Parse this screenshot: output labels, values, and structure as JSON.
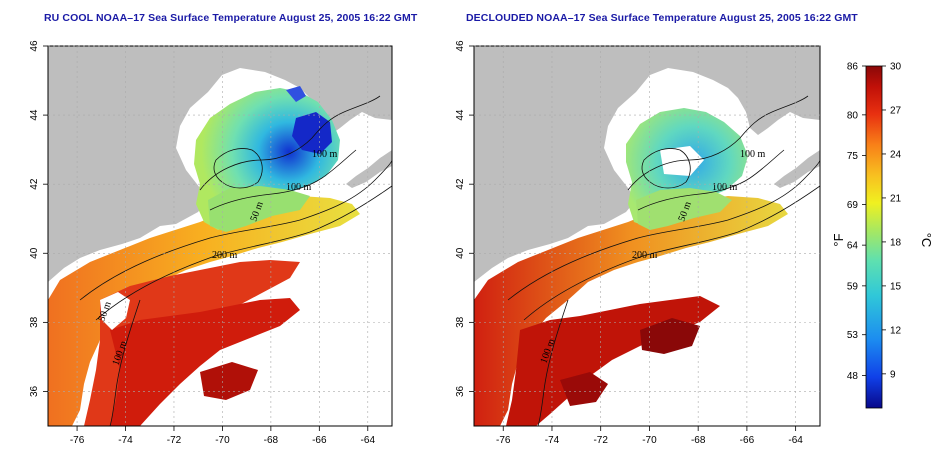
{
  "panels": [
    {
      "id": "left",
      "title": "RU COOL NOAA–17 Sea Surface Temperature August 25, 2005 16:22 GMT",
      "lon_ticks": [
        "-76",
        "-74",
        "-72",
        "-70",
        "-68",
        "-66",
        "-64"
      ],
      "lat_ticks": [
        "36",
        "38",
        "40",
        "42",
        "44",
        "46"
      ],
      "contour_labels": [
        "100 m",
        "100 m",
        "50 m",
        "200 m",
        "50 m",
        "100 m"
      ]
    },
    {
      "id": "right",
      "title": "DECLOUDED NOAA–17 Sea Surface Temperature August 25, 2005 16:22 GMT",
      "lon_ticks": [
        "-76",
        "-74",
        "-72",
        "-70",
        "-68",
        "-66",
        "-64"
      ],
      "lat_ticks": [
        "36",
        "38",
        "40",
        "42",
        "44",
        "46"
      ],
      "contour_labels": [
        "100 m",
        "100 m",
        "50 m",
        "200 m",
        "100 m"
      ]
    }
  ],
  "colorbar": {
    "f_ticks": [
      "86",
      "80",
      "75",
      "69",
      "64",
      "59",
      "53",
      "48"
    ],
    "c_ticks": [
      "30",
      "27",
      "24",
      "21",
      "18",
      "15",
      "12",
      "9"
    ],
    "f_label": "°F",
    "c_label": "°C",
    "colors": [
      "#08088a",
      "#1040e8",
      "#1c8cf0",
      "#30c8d8",
      "#5ee0b0",
      "#a8e860",
      "#f0f020",
      "#f8c020",
      "#f88018",
      "#e83010",
      "#c01008",
      "#8a0808"
    ]
  },
  "colors": {
    "land": "#bebebe",
    "ocean_bg": "#ffffff",
    "grid": "#aaaaaa",
    "contour": "#111111",
    "title": "#1a1aa6"
  }
}
